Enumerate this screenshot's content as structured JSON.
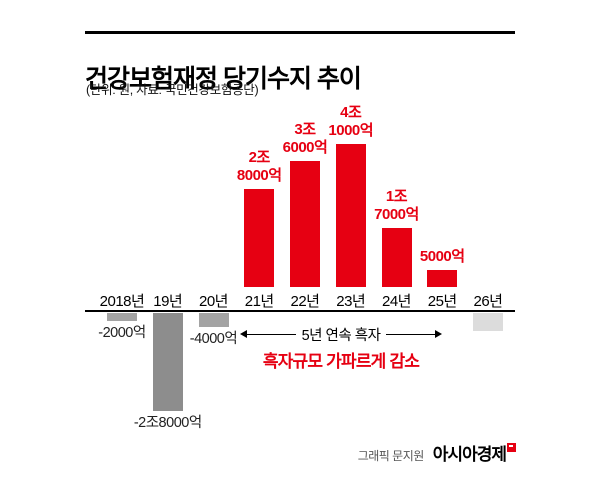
{
  "header": {
    "title": "건강보험재정 당기수지 추이",
    "subtitle": "(단위: 원, 자료: 국민건강보험공단)"
  },
  "chart_data": {
    "type": "bar",
    "title": "건강보험재정 당기수지 추이",
    "unit_note": "단위: 원",
    "source": "국민건강보험공단",
    "categories": [
      "2018년",
      "19년",
      "20년",
      "21년",
      "22년",
      "23년",
      "24년",
      "25년",
      "26년"
    ],
    "values_jo_won": [
      -0.2,
      -2.8,
      -0.4,
      2.8,
      3.6,
      4.1,
      1.7,
      0.5,
      -0.5
    ],
    "bar_labels": [
      {
        "lines": [
          "-2000억"
        ],
        "position": "below"
      },
      {
        "lines": [
          "-2조8000억"
        ],
        "position": "below"
      },
      {
        "lines": [
          "-4000억"
        ],
        "position": "below"
      },
      {
        "lines": [
          "2조",
          "8000억"
        ],
        "position": "above"
      },
      {
        "lines": [
          "3조",
          "6000억"
        ],
        "position": "above"
      },
      {
        "lines": [
          "4조",
          "1000억"
        ],
        "position": "above"
      },
      {
        "lines": [
          "1조",
          "7000억"
        ],
        "position": "above"
      },
      {
        "lines": [
          "5000억"
        ],
        "position": "above"
      },
      {
        "lines": [],
        "position": "none"
      }
    ],
    "bar_colors": [
      "#a3a3a3",
      "#8d8d8d",
      "#a3a3a3",
      "#e60012",
      "#e60012",
      "#e60012",
      "#e60012",
      "#e60012",
      "#dcdcdc"
    ],
    "ylim_jo_won": [
      -3,
      4.5
    ],
    "grid": false,
    "legend": "none"
  },
  "annotation": {
    "arrow_label": "5년 연속 흑자",
    "emphasis": "흑자규모 가파르게 감소"
  },
  "footer": {
    "credit": "그래픽 문지원",
    "brand": "아시아경제"
  },
  "colors": {
    "surplus_red": "#e60012",
    "deficit_gray": "#a3a3a3",
    "deficit_gray_dark": "#8d8d8d",
    "projected_gray": "#dcdcdc",
    "text_black": "#111111"
  }
}
